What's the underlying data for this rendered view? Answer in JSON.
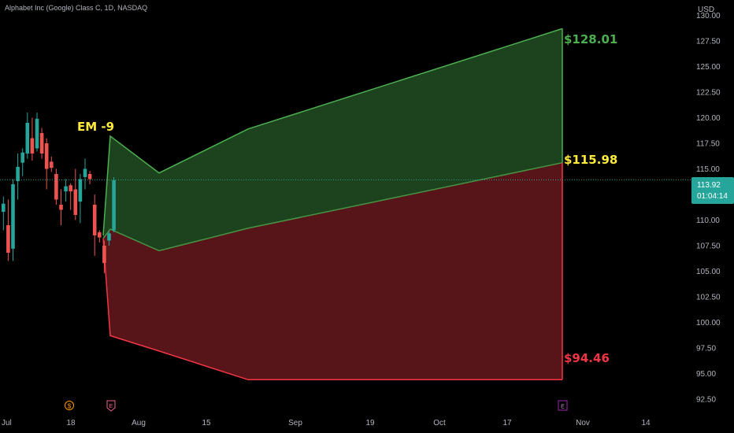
{
  "header": {
    "symbol_title": "Alphabet Inc (Google) Class C, 1D, NASDAQ"
  },
  "price_axis": {
    "currency": "USD",
    "ticks": [
      "130.00",
      "127.50",
      "125.00",
      "122.50",
      "120.00",
      "117.50",
      "115.00",
      "112.50",
      "110.00",
      "107.50",
      "105.00",
      "102.50",
      "100.00",
      "97.50",
      "95.00",
      "92.50"
    ],
    "current_price": "113.92",
    "countdown": "01:04:14"
  },
  "time_axis": {
    "labels": [
      "Jul",
      "18",
      "Aug",
      "15",
      "Sep",
      "19",
      "Oct",
      "17",
      "Nov",
      "14"
    ]
  },
  "annotations": {
    "em_label": "EM -9",
    "upper_target": "$128.01",
    "mid_target": "$115.98",
    "lower_target": "$94.46"
  },
  "markers": {
    "dividend_symbol": "$",
    "earnings_symbol_past": "E",
    "earnings_symbol_future": "E"
  },
  "colors": {
    "background": "#000000",
    "up_candle": "#26a69a",
    "down_candle": "#ef5350",
    "upper_zone_fill": "#1e4620",
    "upper_zone_line": "#4caf50",
    "lower_zone_fill": "#5c161a",
    "lower_zone_line": "#f23645",
    "upper_label": "#4caf50",
    "mid_label": "#ffeb3b",
    "lower_label": "#f23645",
    "price_tag": "#26a69a",
    "dividend_marker": "#ff9800",
    "earnings_marker_past": "#f06292",
    "earnings_marker_future": "#9c27b0"
  },
  "chart_data": {
    "type": "candlestick",
    "title": "Alphabet Inc (Google) Class C, 1D, NASDAQ",
    "ylabel": "USD",
    "ylim": [
      91.5,
      131.5
    ],
    "candles": [
      {
        "o": 110.8,
        "h": 112.3,
        "l": 109.0,
        "c": 111.6
      },
      {
        "o": 109.5,
        "h": 112.0,
        "l": 106.0,
        "c": 106.8
      },
      {
        "o": 107.2,
        "h": 114.0,
        "l": 106.0,
        "c": 113.5
      },
      {
        "o": 113.8,
        "h": 116.5,
        "l": 112.0,
        "c": 115.2
      },
      {
        "o": 115.6,
        "h": 117.0,
        "l": 114.3,
        "c": 116.6
      },
      {
        "o": 116.5,
        "h": 120.5,
        "l": 116.0,
        "c": 119.5
      },
      {
        "o": 118.0,
        "h": 120.0,
        "l": 115.8,
        "c": 116.5
      },
      {
        "o": 117.0,
        "h": 120.5,
        "l": 116.7,
        "c": 119.9
      },
      {
        "o": 118.5,
        "h": 119.0,
        "l": 116.0,
        "c": 116.5
      },
      {
        "o": 117.5,
        "h": 118.0,
        "l": 113.0,
        "c": 115.0
      },
      {
        "o": 115.7,
        "h": 116.2,
        "l": 114.7,
        "c": 115.1
      },
      {
        "o": 114.5,
        "h": 115.0,
        "l": 111.5,
        "c": 112.0
      },
      {
        "o": 111.5,
        "h": 113.0,
        "l": 109.5,
        "c": 111.0
      },
      {
        "o": 112.8,
        "h": 114.0,
        "l": 111.8,
        "c": 113.3
      },
      {
        "o": 113.4,
        "h": 113.6,
        "l": 111.0,
        "c": 112.8
      },
      {
        "o": 113.0,
        "h": 115.0,
        "l": 110.0,
        "c": 110.5
      },
      {
        "o": 111.8,
        "h": 114.5,
        "l": 109.7,
        "c": 114.0
      },
      {
        "o": 114.2,
        "h": 116.0,
        "l": 113.0,
        "c": 115.0
      },
      {
        "o": 114.5,
        "h": 114.8,
        "l": 113.5,
        "c": 114.0
      },
      {
        "o": 111.5,
        "h": 112.5,
        "l": 106.5,
        "c": 108.5
      },
      {
        "o": 108.8,
        "h": 109.0,
        "l": 107.8,
        "c": 108.3
      },
      {
        "o": 107.5,
        "h": 108.0,
        "l": 104.8,
        "c": 105.8
      },
      {
        "o": 108.0,
        "h": 109.0,
        "l": 107.5,
        "c": 108.7
      },
      {
        "o": 109.0,
        "h": 114.2,
        "l": 108.8,
        "c": 113.9
      }
    ],
    "expected_move": {
      "label": "EM -9",
      "upper": [
        [
          131,
          108.5
        ],
        [
          140,
          118.2
        ],
        [
          202,
          114.6
        ],
        [
          315,
          118.9
        ],
        [
          714,
          128.7
        ]
      ],
      "middle": [
        [
          131,
          108.2
        ],
        [
          140,
          109.1
        ],
        [
          202,
          107.0
        ],
        [
          315,
          109.2
        ],
        [
          714,
          115.6
        ]
      ],
      "lower": [
        [
          131,
          108.2
        ],
        [
          140,
          98.7
        ],
        [
          202,
          97.2
        ],
        [
          315,
          94.4
        ],
        [
          714,
          94.4
        ]
      ],
      "upper_target": 128.01,
      "mid_target": 115.98,
      "lower_target": 94.46
    },
    "current_price": 113.92
  }
}
